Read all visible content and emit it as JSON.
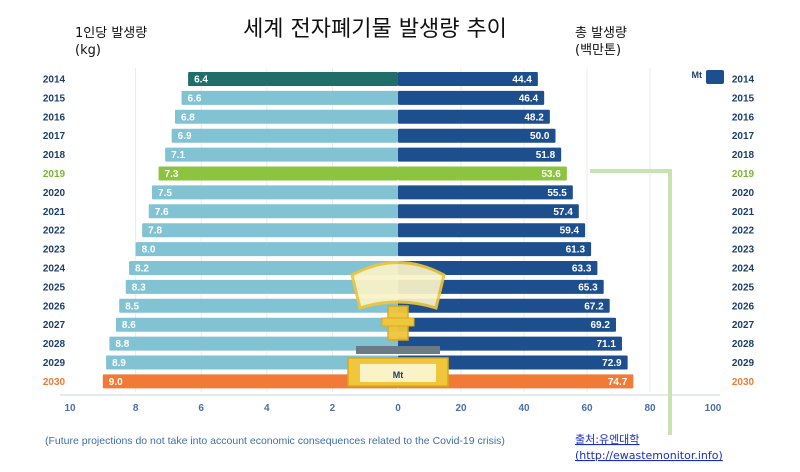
{
  "title": "세계 전자폐기물 발생량 추이",
  "left_label": {
    "line1": "1인당 발생량",
    "line2": "(kg)"
  },
  "right_label": {
    "line1": "총 발생량",
    "line2": "(백만톤)"
  },
  "unit_badge": "Mt",
  "scale_label": "Mt",
  "note": "(Future projections do not take into account economic consequences related to the Covid-19 crisis)",
  "source": {
    "line1": "출처:유엔대학",
    "line2": "(http://ewastemonitor.info)"
  },
  "colors": {
    "left_normal": "#82c3d3",
    "left_first": "#1f6e6a",
    "right_normal": "#1d4e8d",
    "highlight_2019": "#8cc43f",
    "highlight_2030": "#f07a36",
    "year_normal": "#1b3f6b",
    "year_2019": "#79b630",
    "year_2030": "#f07a36"
  },
  "chart_data": {
    "type": "bar",
    "categories": [
      "2014",
      "2015",
      "2016",
      "2017",
      "2018",
      "2019",
      "2020",
      "2021",
      "2022",
      "2023",
      "2024",
      "2025",
      "2026",
      "2027",
      "2028",
      "2029",
      "2030"
    ],
    "series": [
      {
        "name": "1인당 발생량",
        "values": [
          6.4,
          6.6,
          6.8,
          6.9,
          7.1,
          7.3,
          7.5,
          7.6,
          7.8,
          8.0,
          8.2,
          8.3,
          8.5,
          8.6,
          8.8,
          8.9,
          9.0
        ]
      },
      {
        "name": "총 발생량",
        "values": [
          44.4,
          46.4,
          48.2,
          50.0,
          51.8,
          53.6,
          55.5,
          57.4,
          59.4,
          61.3,
          63.3,
          65.3,
          67.2,
          69.2,
          71.1,
          72.9,
          74.7
        ]
      }
    ],
    "left_axis": {
      "ticks": [
        "10",
        "8",
        "6",
        "4",
        "2",
        "0"
      ],
      "range": [
        0,
        10
      ]
    },
    "right_axis": {
      "ticks": [
        "20",
        "40",
        "60",
        "80",
        "100"
      ],
      "range": [
        0,
        100
      ]
    },
    "highlight": {
      "2019": "green",
      "2030": "orange"
    }
  }
}
